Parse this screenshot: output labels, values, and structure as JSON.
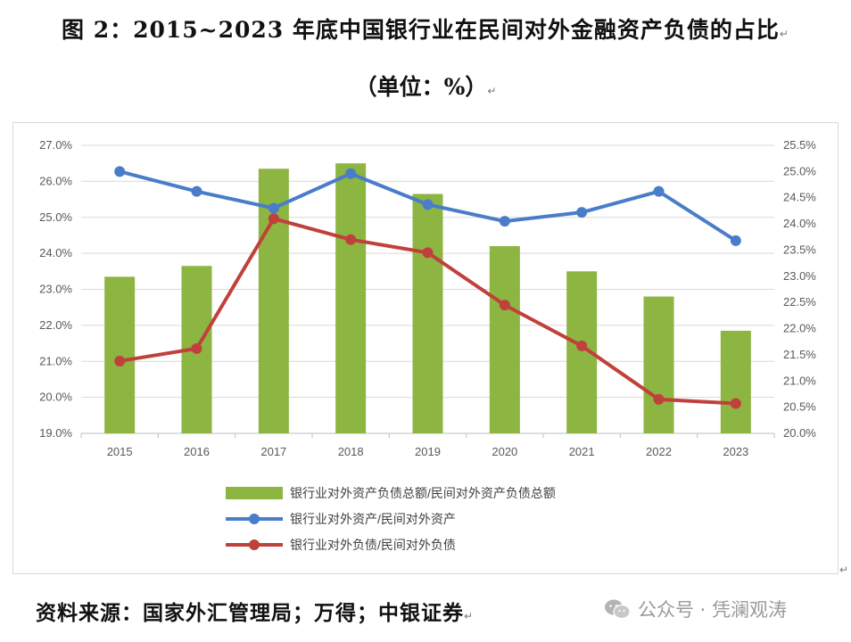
{
  "title": "图 2：2015~2023 年底中国银行业在民间对外金融资产负债的占比",
  "subtitle": "（单位：%）",
  "paragraph_mark": "↵",
  "source": "资料来源：国家外汇管理局；万得；中银证券",
  "watermark": {
    "text": "公众号 · 凭澜观涛",
    "icon": "wechat-icon"
  },
  "chart_data": {
    "type": "bar+line",
    "categories": [
      "2015",
      "2016",
      "2017",
      "2018",
      "2019",
      "2020",
      "2021",
      "2022",
      "2023"
    ],
    "left_axis": {
      "ylim": [
        19.0,
        27.0
      ],
      "ticks": [
        "19.0%",
        "20.0%",
        "21.0%",
        "22.0%",
        "23.0%",
        "24.0%",
        "25.0%",
        "26.0%",
        "27.0%"
      ]
    },
    "right_axis": {
      "ylim": [
        20.0,
        25.5
      ],
      "ticks": [
        "20.0%",
        "20.5%",
        "21.0%",
        "21.5%",
        "22.0%",
        "22.5%",
        "23.0%",
        "23.5%",
        "24.0%",
        "24.5%",
        "25.0%",
        "25.5%"
      ]
    },
    "series": [
      {
        "name": "银行业对外资产负债总额/民间对外资产负债总额",
        "type": "bar",
        "axis": "left",
        "color": "#8db542",
        "values": [
          23.35,
          23.65,
          26.35,
          26.5,
          25.65,
          24.2,
          23.5,
          22.8,
          21.85
        ]
      },
      {
        "name": "银行业对外资产/民间对外资产",
        "type": "line",
        "axis": "right",
        "color": "#4a7dc9",
        "values": [
          25.0,
          24.62,
          24.3,
          24.96,
          24.37,
          24.05,
          24.22,
          24.62,
          23.68
        ]
      },
      {
        "name": "银行业对外负债/民间对外负债",
        "type": "line",
        "axis": "right",
        "color": "#c0413b",
        "values": [
          21.38,
          21.62,
          24.1,
          23.7,
          23.45,
          22.45,
          21.67,
          20.65,
          20.57
        ]
      }
    ]
  }
}
